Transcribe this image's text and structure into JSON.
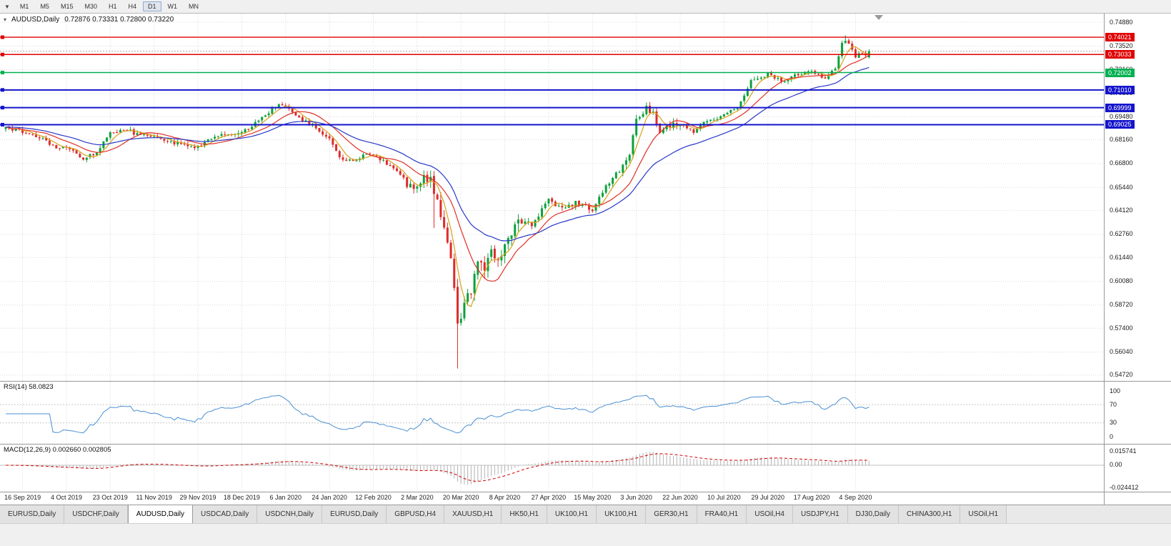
{
  "toolbar": {
    "timeframes": [
      "M1",
      "M5",
      "M15",
      "M30",
      "H1",
      "H4",
      "D1",
      "W1",
      "MN"
    ],
    "active_timeframe": "D1",
    "dropdown_icon": "▼"
  },
  "chart": {
    "symbol": "AUDUSD,Daily",
    "ohlc": "0.72876 0.73331 0.72800 0.73220",
    "collapse_icon": "▾"
  },
  "indicators": {
    "rsi_label": "RSI(14) 58.0823",
    "macd_label": "MACD(12,26,9) 0.002660 0.002805"
  },
  "axis": {
    "main_ticks": [
      "0.74880",
      "0.73520",
      "0.72160",
      "0.70800",
      "0.69480",
      "0.68160",
      "0.66800",
      "0.65440",
      "0.64120",
      "0.62760",
      "0.61440",
      "0.60080",
      "0.58720",
      "0.57400",
      "0.56040",
      "0.54720"
    ],
    "rsi_ticks": [
      "100",
      "70",
      "30",
      "0"
    ],
    "macd_ticks": [
      "0.015741",
      "0.00",
      "-0.024412"
    ],
    "badges": [
      {
        "label": "0.74021",
        "value": 0.74021,
        "color": "#e00000"
      },
      {
        "label": "0.73033",
        "value": 0.73033,
        "color": "#e00000"
      },
      {
        "label": "0.72002",
        "value": 0.72002,
        "color": "#00b050"
      },
      {
        "label": "0.71010",
        "value": 0.7101,
        "color": "#1414cc"
      },
      {
        "label": "0.69999",
        "value": 0.69999,
        "color": "#1414cc"
      },
      {
        "label": "0.69025",
        "value": 0.69025,
        "color": "#1414cc"
      }
    ]
  },
  "chart_data": {
    "type": "candlestick",
    "symbol": "AUDUSD",
    "timeframe": "Daily",
    "last_ohlc": {
      "open": 0.72876,
      "high": 0.73331,
      "low": 0.728,
      "close": 0.7322
    },
    "x_labels": [
      "16 Sep 2019",
      "4 Oct 2019",
      "23 Oct 2019",
      "11 Nov 2019",
      "29 Nov 2019",
      "18 Dec 2019",
      "6 Jan 2020",
      "24 Jan 2020",
      "12 Feb 2020",
      "2 Mar 2020",
      "20 Mar 2020",
      "8 Apr 2020",
      "27 Apr 2020",
      "15 May 2020",
      "3 Jun 2020",
      "22 Jun 2020",
      "10 Jul 2020",
      "29 Jul 2020",
      "17 Aug 2020",
      "4 Sep 2020"
    ],
    "x_label_first_index": 5,
    "x_label_step": 13,
    "candle_count": 257,
    "ylim_main": [
      0.5439,
      0.7537
    ],
    "close_anchors": [
      [
        0,
        0.688
      ],
      [
        5,
        0.6865
      ],
      [
        10,
        0.6832
      ],
      [
        15,
        0.6772
      ],
      [
        18,
        0.6778
      ],
      [
        23,
        0.6706
      ],
      [
        27,
        0.6748
      ],
      [
        31,
        0.6856
      ],
      [
        35,
        0.6882
      ],
      [
        39,
        0.6846
      ],
      [
        44,
        0.684
      ],
      [
        49,
        0.6806
      ],
      [
        53,
        0.6786
      ],
      [
        57,
        0.6772
      ],
      [
        62,
        0.6842
      ],
      [
        66,
        0.6852
      ],
      [
        70,
        0.6856
      ],
      [
        75,
        0.693
      ],
      [
        79,
        0.6992
      ],
      [
        82,
        0.7018
      ],
      [
        84,
        0.6986
      ],
      [
        87,
        0.6936
      ],
      [
        91,
        0.69
      ],
      [
        96,
        0.6826
      ],
      [
        100,
        0.6692
      ],
      [
        105,
        0.6716
      ],
      [
        109,
        0.6736
      ],
      [
        113,
        0.6682
      ],
      [
        117,
        0.6622
      ],
      [
        119,
        0.6562
      ],
      [
        122,
        0.6546
      ],
      [
        124,
        0.6602
      ],
      [
        126,
        0.6582
      ],
      [
        128,
        0.648
      ],
      [
        130,
        0.6302
      ],
      [
        132,
        0.6152
      ],
      [
        133,
        0.5992
      ],
      [
        134,
        0.5782
      ],
      [
        135,
        0.5796
      ],
      [
        136,
        0.5902
      ],
      [
        138,
        0.5952
      ],
      [
        140,
        0.6132
      ],
      [
        142,
        0.6072
      ],
      [
        144,
        0.6172
      ],
      [
        146,
        0.6102
      ],
      [
        148,
        0.6236
      ],
      [
        152,
        0.6352
      ],
      [
        156,
        0.6332
      ],
      [
        161,
        0.6466
      ],
      [
        165,
        0.6422
      ],
      [
        169,
        0.6456
      ],
      [
        174,
        0.6416
      ],
      [
        178,
        0.6552
      ],
      [
        182,
        0.6642
      ],
      [
        185,
        0.6746
      ],
      [
        187,
        0.6926
      ],
      [
        190,
        0.7002
      ],
      [
        192,
        0.6962
      ],
      [
        194,
        0.6862
      ],
      [
        196,
        0.6892
      ],
      [
        200,
        0.6906
      ],
      [
        204,
        0.6862
      ],
      [
        208,
        0.6932
      ],
      [
        213,
        0.6952
      ],
      [
        217,
        0.7002
      ],
      [
        221,
        0.7152
      ],
      [
        226,
        0.7192
      ],
      [
        230,
        0.7152
      ],
      [
        234,
        0.7182
      ],
      [
        239,
        0.7206
      ],
      [
        243,
        0.7162
      ],
      [
        246,
        0.7232
      ],
      [
        248,
        0.7372
      ],
      [
        249,
        0.7392
      ],
      [
        252,
        0.7286
      ],
      [
        253,
        0.7312
      ],
      [
        254,
        0.7302
      ],
      [
        255,
        0.7288
      ],
      [
        256,
        0.7322
      ]
    ],
    "wick_overrides": {
      "82": {
        "h": 0.7032
      },
      "127": {
        "l": 0.6313
      },
      "134": {
        "l": 0.551
      },
      "190": {
        "h": 0.7022
      },
      "249": {
        "h": 0.7413
      }
    },
    "last_candle": {
      "o": 0.72876,
      "h": 0.73331,
      "l": 0.728,
      "c": 0.7322
    },
    "bid_line": 0.7322,
    "hlines": [
      {
        "value": 0.74021,
        "color": "#e00000",
        "width": 1.4
      },
      {
        "value": 0.73033,
        "color": "#e00000",
        "width": 1.4
      },
      {
        "value": 0.72002,
        "color": "#00b050",
        "width": 1.4
      },
      {
        "value": 0.7101,
        "color": "#1414cc",
        "width": 2
      },
      {
        "value": 0.69999,
        "color": "#1414cc",
        "width": 2
      },
      {
        "value": 0.69025,
        "color": "#1414cc",
        "width": 2
      }
    ],
    "moving_averages": [
      {
        "type": "sma",
        "period": 5,
        "color": "#d8a018"
      },
      {
        "type": "sma",
        "period": 13,
        "color": "#e03028"
      },
      {
        "type": "ema",
        "period": 30,
        "color": "#2838c8"
      }
    ],
    "rsi": {
      "period": 14,
      "ylim": [
        0,
        100
      ],
      "levels": [
        70,
        30
      ],
      "color": "#4a8fd3",
      "current": 58.0823
    },
    "macd": {
      "fast": 12,
      "slow": 26,
      "signal": 9,
      "ylim": [
        -0.024412,
        0.015741
      ],
      "hist_color": "#b2b2b2",
      "signal_color": "#d00000",
      "current_macd": 0.00266,
      "current_signal": 0.002805
    },
    "colors": {
      "up": "#0ca13c",
      "down": "#dd2c2c",
      "grid": "#d9d9d9",
      "bid": "#aaaaaa"
    }
  },
  "tabs": {
    "items": [
      "EURUSD,Daily",
      "USDCHF,Daily",
      "AUDUSD,Daily",
      "USDCAD,Daily",
      "USDCNH,Daily",
      "EURUSD,Daily",
      "GBPUSD,H4",
      "XAUUSD,H1",
      "HK50,H1",
      "UK100,H1",
      "UK100,H1",
      "GER30,H1",
      "FRA40,H1",
      "USOil,H4",
      "USDJPY,H1",
      "DJ30,Daily",
      "CHINA300,H1",
      "USOil,H1"
    ],
    "active_index": 2
  }
}
